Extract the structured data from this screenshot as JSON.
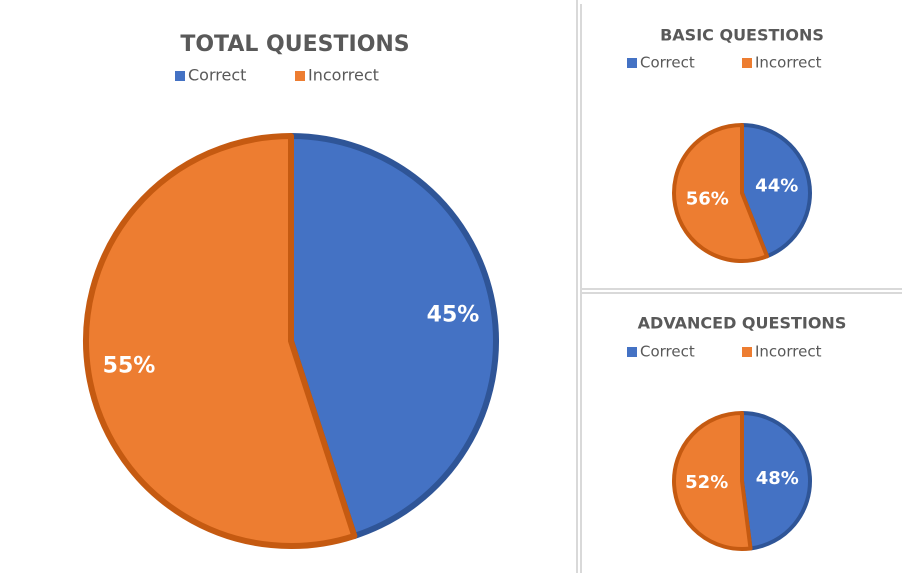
{
  "chart_data": [
    {
      "type": "pie",
      "title": "TOTAL QUESTIONS",
      "categories": [
        "Correct",
        "Incorrect"
      ],
      "values": [
        45,
        55
      ],
      "value_labels": [
        "45%",
        "55%"
      ],
      "colors": [
        "#4472c4",
        "#ed7d31"
      ]
    },
    {
      "type": "pie",
      "title": "BASIC QUESTIONS",
      "categories": [
        "Correct",
        "Incorrect"
      ],
      "values": [
        44,
        56
      ],
      "value_labels": [
        "44%",
        "56%"
      ],
      "colors": [
        "#4472c4",
        "#ed7d31"
      ]
    },
    {
      "type": "pie",
      "title": "ADVANCED QUESTIONS",
      "categories": [
        "Correct",
        "Incorrect"
      ],
      "values": [
        48,
        52
      ],
      "value_labels": [
        "48%",
        "52%"
      ],
      "colors": [
        "#4472c4",
        "#ed7d31"
      ]
    }
  ]
}
